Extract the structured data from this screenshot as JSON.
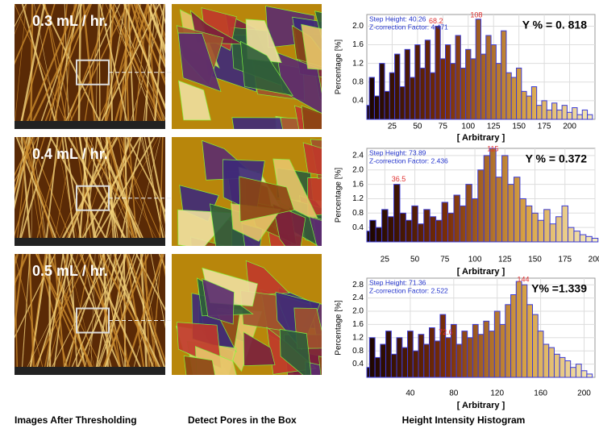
{
  "panels": [
    {
      "label": "0.3 mL / hr."
    },
    {
      "label": "0.4 mL / hr."
    },
    {
      "label": "0.5 mL / hr."
    }
  ],
  "captions": [
    "Images After Thresholding",
    "Detect Pores in the Box",
    "Height Intensity Histogram"
  ],
  "chart_data": [
    {
      "type": "bar",
      "color": "#3b3bd6",
      "grid": true,
      "xlabel": "[ Arbitrary ]",
      "ylabel": "Percentage [%]",
      "step_height": "Step Height: 40.26",
      "z_factor": "Z-correction Factor: 4.471",
      "y_percent": "Y % = 0. 818",
      "peak_labels": [
        68.2,
        108
      ],
      "xlim": [
        0,
        225
      ],
      "ylim": [
        0,
        2.25
      ],
      "xticks": [
        25,
        50,
        75,
        100,
        125,
        150,
        175,
        200
      ],
      "yticks": [
        0.4,
        0.8,
        1.2,
        1.6,
        {
          "value": 2,
          "label": "2.0"
        }
      ],
      "x": [
        0,
        5,
        10,
        15,
        20,
        25,
        30,
        35,
        40,
        45,
        50,
        55,
        60,
        65,
        70,
        75,
        80,
        85,
        90,
        95,
        100,
        105,
        110,
        115,
        120,
        125,
        130,
        135,
        140,
        145,
        150,
        155,
        160,
        165,
        170,
        175,
        180,
        185,
        190,
        195,
        200,
        205,
        210,
        215,
        220
      ],
      "values": [
        0.3,
        0.9,
        0.5,
        1.2,
        0.6,
        1.0,
        1.4,
        0.7,
        1.5,
        0.9,
        1.6,
        1.1,
        1.7,
        1.0,
        2.0,
        1.3,
        1.6,
        1.2,
        1.8,
        1.1,
        1.5,
        1.3,
        2.15,
        1.4,
        1.8,
        1.6,
        1.2,
        1.9,
        1.0,
        0.9,
        1.1,
        0.6,
        0.5,
        0.7,
        0.3,
        0.4,
        0.2,
        0.35,
        0.2,
        0.3,
        0.15,
        0.25,
        0.1,
        0.2,
        0.1
      ]
    },
    {
      "type": "bar",
      "color": "#3b3bd6",
      "grid": true,
      "xlabel": "[ Arbitrary ]",
      "ylabel": "Percentage [%]",
      "step_height": "Step Height: 73.89",
      "z_factor": "Z-correction Factor: 2.436",
      "y_percent": "Y % = 0.372",
      "peak_labels": [
        36.5,
        115
      ],
      "xlim": [
        10,
        200
      ],
      "ylim": [
        0,
        2.6
      ],
      "xticks": [
        25,
        50,
        75,
        100,
        125,
        150,
        175,
        200
      ],
      "yticks": [
        0.4,
        0.8,
        1.2,
        1.6,
        {
          "value": 2,
          "label": "2.0"
        },
        2.4
      ],
      "x": [
        10,
        15,
        20,
        25,
        30,
        35,
        40,
        45,
        50,
        55,
        60,
        65,
        70,
        75,
        80,
        85,
        90,
        95,
        100,
        105,
        110,
        115,
        120,
        125,
        130,
        135,
        140,
        145,
        150,
        155,
        160,
        165,
        170,
        175,
        180,
        185,
        190,
        195,
        200
      ],
      "values": [
        0.3,
        0.6,
        0.4,
        0.9,
        0.7,
        1.6,
        0.8,
        0.6,
        1.0,
        0.5,
        0.9,
        0.7,
        0.6,
        1.1,
        0.8,
        1.3,
        1.0,
        1.6,
        1.2,
        2.0,
        2.4,
        2.6,
        1.8,
        2.4,
        1.6,
        1.8,
        1.2,
        1.0,
        0.8,
        0.6,
        0.9,
        0.5,
        0.7,
        1.0,
        0.4,
        0.3,
        0.2,
        0.15,
        0.1
      ]
    },
    {
      "type": "bar",
      "color": "#3b3bd6",
      "grid": true,
      "xlabel": "[ Arbitrary ]",
      "ylabel": "Percentage [%]",
      "step_height": "Step Height: 71.36",
      "z_factor": "Z-correction Factor: 2.522",
      "y_percent": "Y% =1.339",
      "peak_labels": [
        72.6,
        144
      ],
      "xlim": [
        0,
        210
      ],
      "ylim": [
        0,
        3
      ],
      "xticks": [
        40,
        80,
        120,
        160,
        200
      ],
      "yticks": [
        0.4,
        0.8,
        1.2,
        1.6,
        {
          "value": 2,
          "label": "2.0"
        },
        2.4,
        2.8
      ],
      "x": [
        0,
        5,
        10,
        15,
        20,
        25,
        30,
        35,
        40,
        45,
        50,
        55,
        60,
        65,
        70,
        75,
        80,
        85,
        90,
        95,
        100,
        105,
        110,
        115,
        120,
        125,
        130,
        135,
        140,
        145,
        150,
        155,
        160,
        165,
        170,
        175,
        180,
        185,
        190,
        195,
        200,
        205
      ],
      "values": [
        0.3,
        1.2,
        0.6,
        1.0,
        1.4,
        0.7,
        1.2,
        0.9,
        1.4,
        0.8,
        1.3,
        1.0,
        1.5,
        1.1,
        1.9,
        1.2,
        1.6,
        1.0,
        1.4,
        1.2,
        1.6,
        1.3,
        1.7,
        1.4,
        2.0,
        1.6,
        2.2,
        2.5,
        2.9,
        2.8,
        2.2,
        1.9,
        1.4,
        1.0,
        0.9,
        0.7,
        0.6,
        0.5,
        0.3,
        0.4,
        0.2,
        0.1
      ]
    }
  ]
}
